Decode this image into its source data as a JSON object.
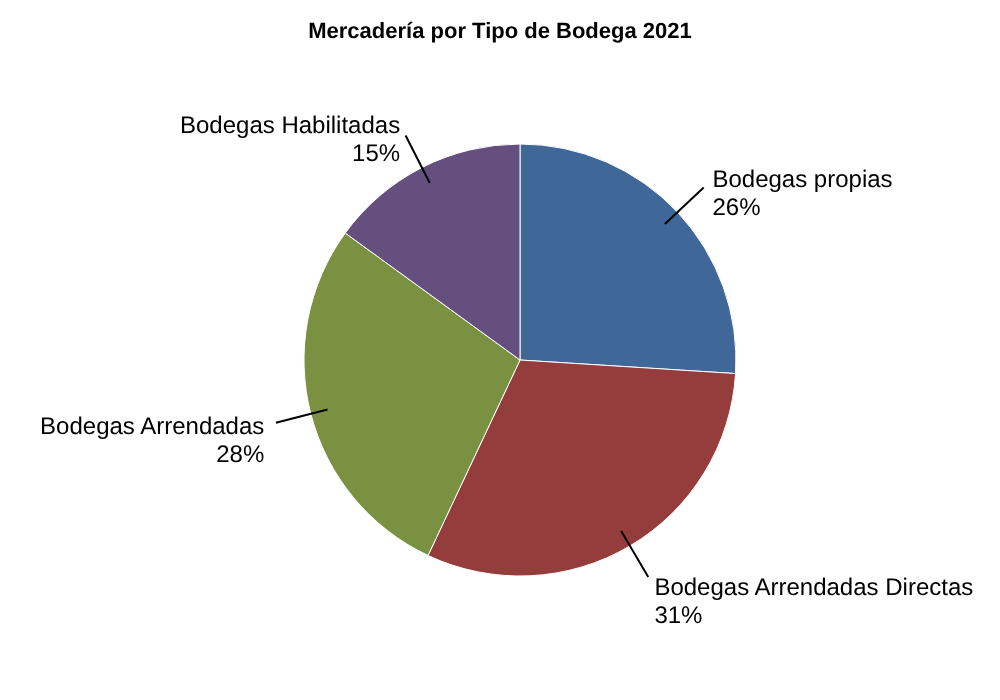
{
  "chart_data": {
    "type": "pie",
    "title": "Mercadería por Tipo de Bodega 2021",
    "categories": [
      "Bodegas propias",
      "Bodegas Arrendadas Directas",
      "Bodegas Arrendadas",
      "Bodegas Habilitadas"
    ],
    "values": [
      26,
      31,
      28,
      15
    ],
    "value_labels": [
      "26%",
      "31%",
      "28%",
      "15%"
    ],
    "colors": [
      "#3f6797",
      "#943d3c",
      "#7a9142",
      "#654f7f"
    ],
    "legend": false
  }
}
